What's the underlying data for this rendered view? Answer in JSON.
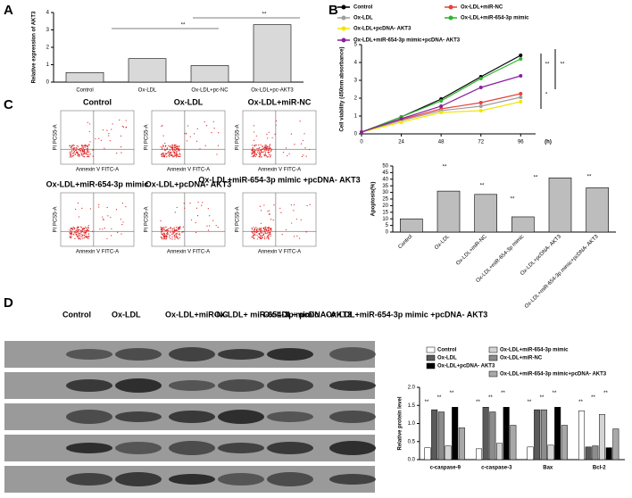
{
  "panel_labels": [
    "A",
    "B",
    "C",
    "D"
  ],
  "chart_data": [
    {
      "type": "bar",
      "y_label": "Relative expression of AKT3",
      "categories": [
        "Control",
        "Ox-LDL",
        "Ox-LDL+pc-NC",
        "Ox-LDL+pc-AKT3"
      ],
      "values": [
        0.55,
        1.35,
        0.95,
        3.3
      ],
      "color": "#d9d9d9",
      "ylim": [
        0,
        4
      ],
      "yticks": [
        0,
        1,
        2,
        3,
        4
      ],
      "annotations": [
        "**",
        "**"
      ]
    },
    {
      "type": "line",
      "x_label": "(h)",
      "y_label": "Cell viability (450nm absorbance)",
      "x": [
        0,
        24,
        48,
        72,
        96
      ],
      "xlim": [
        0,
        105
      ],
      "xticks": [
        0,
        24,
        48,
        72,
        96
      ],
      "ylim": [
        0,
        5
      ],
      "yticks": [
        0,
        1,
        2,
        3,
        4,
        5
      ],
      "series": [
        {
          "name": "Control",
          "color": "#000000",
          "values": [
            0.1,
            0.95,
            1.95,
            3.2,
            4.4
          ]
        },
        {
          "name": "Ox-LDL+miR-NC",
          "color": "#e8403a",
          "values": [
            0.1,
            0.8,
            1.4,
            1.75,
            2.25
          ]
        },
        {
          "name": "Ox-LDL",
          "color": "#9e9e9e",
          "values": [
            0.1,
            0.75,
            1.3,
            1.55,
            2.05
          ]
        },
        {
          "name": "Ox-LDL+miR-654-3p mimic",
          "color": "#2db52d",
          "values": [
            0.1,
            0.95,
            1.85,
            3.1,
            4.2
          ]
        },
        {
          "name": "Ox-LDL+pcDNA- AKT3",
          "color": "#f2e600",
          "values": [
            0.1,
            0.65,
            1.2,
            1.3,
            1.8
          ]
        },
        {
          "name": "Ox-LDL+miR-654-3p mimic+pcDNA- AKT3",
          "color": "#8a1fa0",
          "values": [
            0.1,
            0.85,
            1.55,
            2.6,
            3.25
          ]
        }
      ],
      "annotations": [
        "**",
        "**",
        "*"
      ]
    },
    {
      "type": "bar",
      "y_label": "Apoptosis(%)",
      "categories": [
        "Control",
        "Ox-LDL",
        "Ox-LDL+miR-NC",
        "Ox-LDL+miR-654-3p mimic",
        "Ox-LDL+pcDNA- AKT3",
        "Ox-LDL+miR-654-3p mimic+pcDNA- AKT3"
      ],
      "values": [
        10,
        31,
        28.5,
        11.5,
        41,
        33.5
      ],
      "color": "#bdbdbd",
      "ylim": [
        0,
        50
      ],
      "yticks": [
        0,
        5,
        10,
        15,
        20,
        25,
        30,
        35,
        40,
        45,
        50
      ],
      "annotations": [
        "**",
        "**",
        "**",
        "**",
        "**"
      ]
    },
    {
      "type": "grouped_bar",
      "y_label": "Relative protein level",
      "categories": [
        "c-caspase-9",
        "c-caspase-3",
        "Bax",
        "Bcl-2"
      ],
      "ylim": [
        0,
        2
      ],
      "yticks": [
        {
          "value": 0,
          "label": "0.0"
        },
        {
          "value": 0.5,
          "label": "0.5"
        },
        {
          "value": 1,
          "label": "1.0"
        },
        {
          "value": 1.5,
          "label": "1.5"
        },
        {
          "value": 2,
          "label": "2.0"
        }
      ],
      "series": [
        {
          "name": "Control",
          "color": "#ffffff",
          "values": [
            0.33,
            0.3,
            0.35,
            1.35
          ]
        },
        {
          "name": "Ox-LDL",
          "color": "#5a5a5a",
          "values": [
            1.38,
            1.45,
            1.38,
            0.35
          ]
        },
        {
          "name": "Ox-LDL+miR-NC",
          "color": "#8c8c8c",
          "values": [
            1.32,
            1.32,
            1.38,
            0.38
          ]
        },
        {
          "name": "Ox-LDL+miR-654-3p mimic",
          "color": "#d4d4d4",
          "values": [
            0.38,
            0.45,
            0.4,
            1.25
          ]
        },
        {
          "name": "Ox-LDL+pcDNA- AKT3",
          "color": "#000000",
          "values": [
            1.45,
            1.45,
            1.45,
            0.33
          ]
        },
        {
          "name": "Ox-LDL+miR-654-3p mimic+pcDNA- AKT3",
          "color": "#a8a8a8",
          "values": [
            0.88,
            0.95,
            0.95,
            0.85
          ]
        }
      ],
      "annotations": [
        "**",
        "**",
        "**",
        "**",
        "**",
        "**",
        "**",
        "**",
        "**",
        "**",
        "**",
        "**"
      ]
    }
  ],
  "flow_cytometry": {
    "x_label": "Annexin V FITC-A",
    "y_label": "PI PCS5-A",
    "titles": [
      "Control",
      "Ox-LDL",
      "Ox-LDL+miR-NC",
      "Ox-LDL+miR-654-3p mimic",
      "Ox-LDL+pcDNA- AKT3",
      "Ox-LDL+miR-654-3p mimic +pcDNA- AKT3"
    ]
  },
  "western_blot": {
    "lanes": [
      "Control",
      "Ox-LDL",
      "Ox-LDL+miR-NC",
      "Ox-LDL+ miR-654-3p mimic",
      "Ox-LDL+ pcDNA- AKT3",
      "Ox-LDL+miR-654-3p mimic +pcDNA- AKT3"
    ]
  }
}
